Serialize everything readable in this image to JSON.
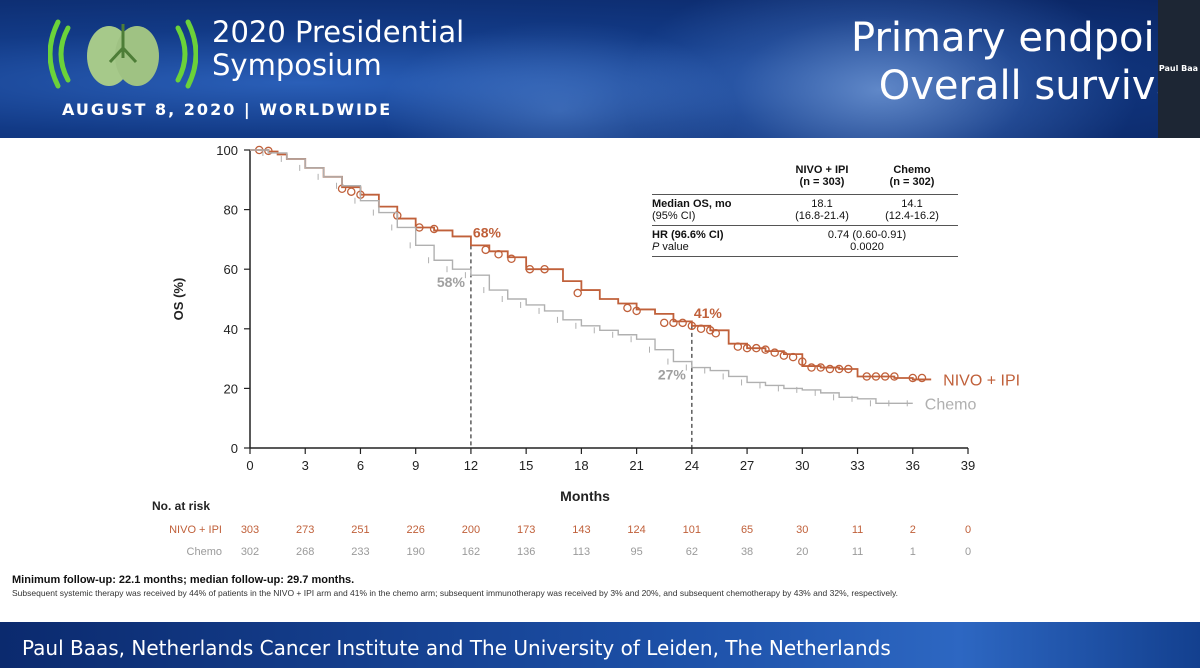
{
  "header": {
    "conference_title_line1": "2020 Presidential",
    "conference_title_line2": "Symposium",
    "conference_date": "AUGUST 8, 2020 | WORLDWIDE",
    "slide_title_line1": "Primary endpoin",
    "slide_title_line2": "Overall surviva",
    "webcam_label": "Paul Baa",
    "logo_icon": "lungs-broadcast-icon"
  },
  "footer": {
    "presenter": "Paul Baas, Netherlands Cancer Institute and The University of Leiden, The Netherlands"
  },
  "summary_table": {
    "col1_header": [
      "NIVO + IPI",
      "(n = 303)"
    ],
    "col2_header": [
      "Chemo",
      "(n = 302)"
    ],
    "row1_label": [
      "Median OS, mo",
      "(95% CI)"
    ],
    "row1_col1": [
      "18.1",
      "(16.8-21.4)"
    ],
    "row1_col2": [
      "14.1",
      "(12.4-16.2)"
    ],
    "row2_label": "HR (96.6% CI)",
    "row2_value": "0.74 (0.60-0.91)",
    "row3_label_italic": "P",
    "row3_label_rest": " value",
    "row3_value": "0.0020"
  },
  "notes": {
    "followup": "Minimum follow-up: 22.1 months; median follow-up: 29.7 months.",
    "subsequent": "Subsequent systemic therapy was received by 44% of patients in the NIVO + IPI arm and 41% in the chemo arm; subsequent immunotherapy was received by 3% and 20%, and subsequent chemotherapy by 43% and 32%, respectively."
  },
  "chart_data": {
    "type": "line",
    "title": "",
    "xlabel": "Months",
    "ylabel": "OS (%)",
    "xlim": [
      0,
      39
    ],
    "ylim": [
      0,
      100
    ],
    "xticks": [
      0,
      3,
      6,
      9,
      12,
      15,
      18,
      21,
      24,
      27,
      30,
      33,
      36,
      39
    ],
    "yticks": [
      0,
      20,
      40,
      60,
      80,
      100
    ],
    "grid": false,
    "series": [
      {
        "name": "NIVO + IPI",
        "color": "#c0603a",
        "points": [
          [
            0,
            100
          ],
          [
            0.5,
            100
          ],
          [
            1,
            99.5
          ],
          [
            1.5,
            98.5
          ],
          [
            2,
            97
          ],
          [
            3,
            94
          ],
          [
            4,
            91
          ],
          [
            5,
            87.5
          ],
          [
            6,
            85
          ],
          [
            7,
            81
          ],
          [
            8,
            77
          ],
          [
            9,
            74
          ],
          [
            10,
            73
          ],
          [
            11,
            71
          ],
          [
            12,
            68
          ],
          [
            13,
            66
          ],
          [
            14,
            64
          ],
          [
            15,
            60
          ],
          [
            16,
            60
          ],
          [
            17,
            56
          ],
          [
            18,
            53
          ],
          [
            19,
            50
          ],
          [
            20,
            48.5
          ],
          [
            21,
            46.5
          ],
          [
            22,
            45
          ],
          [
            23,
            42.5
          ],
          [
            24,
            41
          ],
          [
            25,
            39.5
          ],
          [
            26,
            35
          ],
          [
            27,
            33.5
          ],
          [
            28,
            32.5
          ],
          [
            29,
            31.5
          ],
          [
            30,
            27.5
          ],
          [
            31,
            27
          ],
          [
            32,
            26.5
          ],
          [
            33,
            24
          ],
          [
            34,
            24
          ],
          [
            35,
            23.5
          ],
          [
            36,
            23
          ],
          [
            37,
            23
          ]
        ],
        "censor_marks": [
          [
            0.5,
            100
          ],
          [
            1,
            99.7
          ],
          [
            5,
            87
          ],
          [
            5.5,
            86
          ],
          [
            6,
            85
          ],
          [
            8,
            78
          ],
          [
            9.2,
            74
          ],
          [
            10,
            73.5
          ],
          [
            12.8,
            66.5
          ],
          [
            13.5,
            65
          ],
          [
            14.2,
            63.5
          ],
          [
            15.2,
            60
          ],
          [
            16,
            60
          ],
          [
            17.8,
            52
          ],
          [
            20.5,
            47
          ],
          [
            21,
            46
          ],
          [
            22.5,
            42
          ],
          [
            23,
            42
          ],
          [
            23.5,
            42
          ],
          [
            24,
            41
          ],
          [
            24.5,
            40
          ],
          [
            25,
            39.5
          ],
          [
            25.3,
            38.5
          ],
          [
            26.5,
            34
          ],
          [
            27,
            33.5
          ],
          [
            27.5,
            33.5
          ],
          [
            28,
            33
          ],
          [
            28.5,
            32
          ],
          [
            29,
            31
          ],
          [
            29.5,
            30.5
          ],
          [
            30,
            29
          ],
          [
            30.5,
            27
          ],
          [
            31,
            27
          ],
          [
            31.5,
            26.5
          ],
          [
            32,
            26.5
          ],
          [
            32.5,
            26.5
          ],
          [
            33.5,
            24
          ],
          [
            34,
            24
          ],
          [
            34.5,
            24
          ],
          [
            35,
            24
          ],
          [
            36,
            23.5
          ],
          [
            36.5,
            23.5
          ]
        ],
        "end_label": "NIVO + IPI"
      },
      {
        "name": "Chemo",
        "color": "#b0b0b0",
        "points": [
          [
            0,
            100
          ],
          [
            1,
            99
          ],
          [
            2,
            97
          ],
          [
            3,
            94
          ],
          [
            4,
            91
          ],
          [
            5,
            88
          ],
          [
            6,
            83
          ],
          [
            7,
            79
          ],
          [
            8,
            74
          ],
          [
            9,
            68
          ],
          [
            10,
            63
          ],
          [
            11,
            60
          ],
          [
            12,
            58
          ],
          [
            13,
            53
          ],
          [
            14,
            50
          ],
          [
            15,
            48
          ],
          [
            16,
            46
          ],
          [
            17,
            43
          ],
          [
            18,
            41
          ],
          [
            19,
            39.5
          ],
          [
            20,
            38
          ],
          [
            21,
            36.5
          ],
          [
            22,
            33
          ],
          [
            23,
            29
          ],
          [
            24,
            27
          ],
          [
            25,
            26
          ],
          [
            26,
            24
          ],
          [
            27,
            22
          ],
          [
            28,
            21
          ],
          [
            29,
            20
          ],
          [
            30,
            19.5
          ],
          [
            31,
            18.5
          ],
          [
            32,
            17
          ],
          [
            33,
            16.5
          ],
          [
            34,
            15
          ],
          [
            35,
            15
          ],
          [
            36,
            15
          ]
        ],
        "end_label": "Chemo"
      }
    ],
    "annotations": [
      {
        "text": "68%",
        "x": 12,
        "y": 68,
        "color": "#c0603a"
      },
      {
        "text": "58%",
        "x": 12,
        "y": 58,
        "color": "#a0a0a0"
      },
      {
        "text": "41%",
        "x": 24,
        "y": 41,
        "color": "#c0603a"
      },
      {
        "text": "27%",
        "x": 24,
        "y": 27,
        "color": "#a0a0a0"
      }
    ],
    "reference_lines": [
      12,
      24
    ],
    "risk_table": {
      "title": "No. at risk",
      "rows": [
        {
          "name": "NIVO + IPI",
          "color": "#c0603a",
          "values": [
            303,
            273,
            251,
            226,
            200,
            173,
            143,
            124,
            101,
            65,
            30,
            11,
            2,
            0
          ]
        },
        {
          "name": "Chemo",
          "color": "#9a9a9a",
          "values": [
            302,
            268,
            233,
            190,
            162,
            136,
            113,
            95,
            62,
            38,
            20,
            11,
            1,
            0
          ]
        }
      ]
    }
  }
}
